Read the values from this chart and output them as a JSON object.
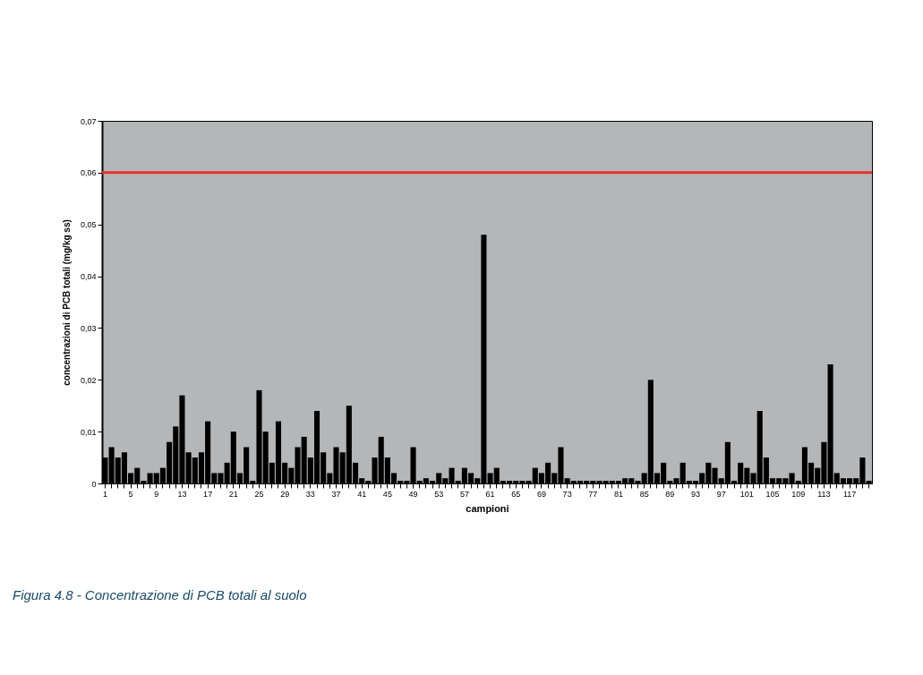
{
  "chart_data": {
    "type": "bar",
    "xlabel": "campioni",
    "ylabel": "concentrazioni di PCB totali (mg/kg ss)",
    "categories": [
      "1",
      null,
      null,
      null,
      "5",
      null,
      null,
      null,
      "9",
      null,
      null,
      null,
      "13",
      null,
      null,
      null,
      "17",
      null,
      null,
      null,
      "21",
      null,
      null,
      null,
      "25",
      null,
      null,
      null,
      "29",
      null,
      null,
      null,
      "33",
      null,
      null,
      null,
      "37",
      null,
      null,
      null,
      "41",
      null,
      null,
      null,
      "45",
      null,
      null,
      null,
      "49",
      null,
      null,
      null,
      "53",
      null,
      null,
      null,
      "57",
      null,
      null,
      null,
      "61",
      null,
      null,
      null,
      "65",
      null,
      null,
      null,
      "69",
      null,
      null,
      null,
      "73",
      null,
      null,
      null,
      "77",
      null,
      null,
      null,
      "81",
      null,
      null,
      null,
      "85",
      null,
      null,
      null,
      "89",
      null,
      null,
      null,
      "93",
      null,
      null,
      null,
      "97",
      null,
      null,
      null,
      "101",
      null,
      null,
      null,
      "105",
      null,
      null,
      null,
      "109",
      null,
      null,
      null,
      "113",
      null,
      null,
      null,
      "117",
      null,
      null,
      null
    ],
    "values": [
      0.005,
      0.007,
      0.005,
      0.006,
      0.002,
      0.003,
      0.0005,
      0.002,
      0.002,
      0.003,
      0.008,
      0.011,
      0.017,
      0.006,
      0.005,
      0.006,
      0.012,
      0.002,
      0.002,
      0.004,
      0.01,
      0.002,
      0.007,
      0.0005,
      0.018,
      0.01,
      0.004,
      0.012,
      0.004,
      0.003,
      0.007,
      0.009,
      0.005,
      0.014,
      0.006,
      0.002,
      0.007,
      0.006,
      0.015,
      0.004,
      0.001,
      0.0005,
      0.005,
      0.009,
      0.005,
      0.002,
      0.0005,
      0.0005,
      0.007,
      0.0005,
      0.001,
      0.0005,
      0.002,
      0.001,
      0.003,
      0.0005,
      0.003,
      0.002,
      0.001,
      0.048,
      0.002,
      0.003,
      0.0005,
      0.0005,
      0.0005,
      0.0005,
      0.0005,
      0.003,
      0.002,
      0.004,
      0.002,
      0.007,
      0.001,
      0.0005,
      0.0005,
      0.0005,
      0.0005,
      0.0005,
      0.0005,
      0.0005,
      0.0005,
      0.001,
      0.001,
      0.0005,
      0.002,
      0.02,
      0.002,
      0.004,
      0.0005,
      0.001,
      0.004,
      0.0005,
      0.0005,
      0.002,
      0.004,
      0.003,
      0.001,
      0.008,
      0.0005,
      0.004,
      0.003,
      0.002,
      0.014,
      0.005,
      0.001,
      0.001,
      0.001,
      0.002,
      0.0005,
      0.007,
      0.004,
      0.003,
      0.008,
      0.023,
      0.002,
      0.001,
      0.001,
      0.001,
      0.005,
      0.0005
    ],
    "color": "#000000",
    "ylim": [
      0,
      0.07
    ],
    "yticks": [
      0,
      {
        "value": 0.01,
        "label": "0,01"
      },
      {
        "value": 0.02,
        "label": "0,02"
      },
      {
        "value": 0.03,
        "label": "0,03"
      },
      {
        "value": 0.04,
        "label": "0,04"
      },
      {
        "value": 0.05,
        "label": "0,05"
      },
      {
        "value": 0.06,
        "label": "0,06"
      },
      {
        "value": 0.07,
        "label": "0,07"
      }
    ],
    "ref_lines": [
      {
        "axis": "y",
        "value": 0.06,
        "color": "#e8302a"
      }
    ],
    "grid": false,
    "annotations": [
      "Figura 4.8 - Concentrazione di PCB totali al suolo"
    ]
  }
}
